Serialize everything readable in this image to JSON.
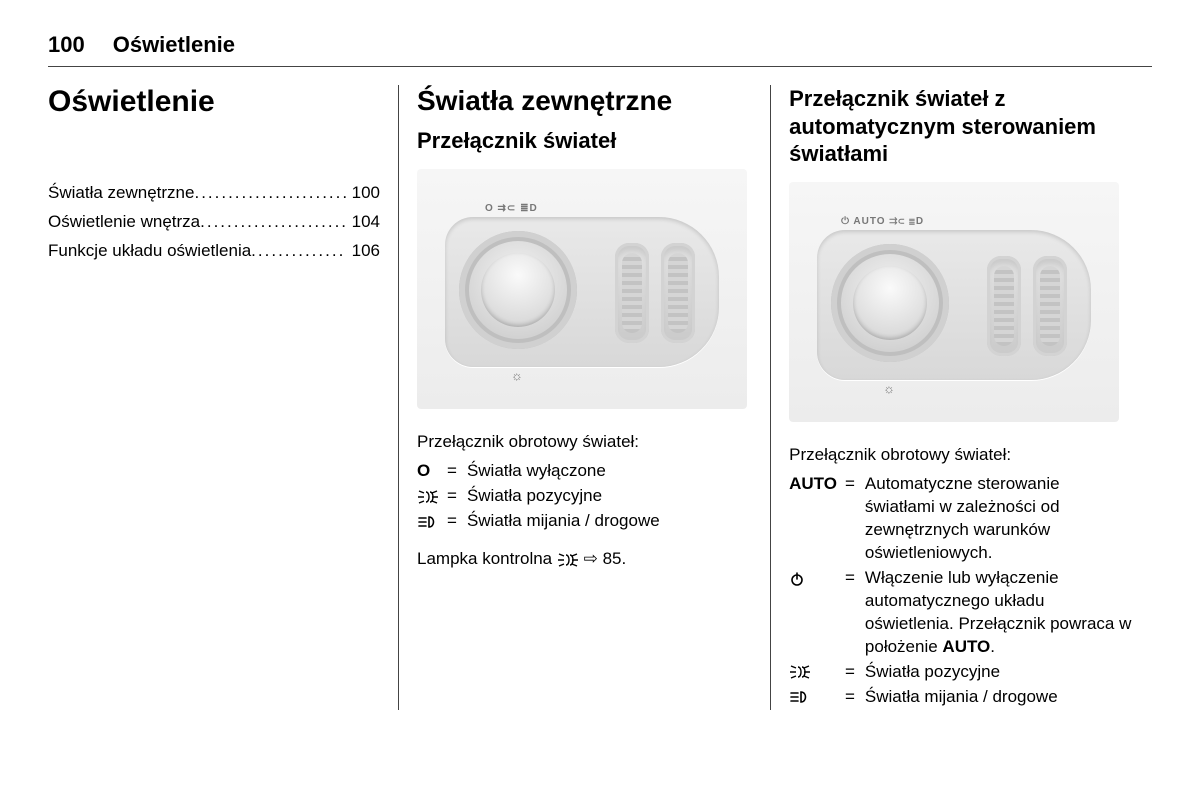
{
  "header": {
    "page_number": "100",
    "chapter": "Oświetlenie"
  },
  "col1": {
    "title": "Oświetlenie",
    "toc": [
      {
        "label": "Światła zewnętrzne",
        "page": "100"
      },
      {
        "label": "Oświetlenie wnętrza",
        "page": "104"
      },
      {
        "label": "Funkcje układu oświetlenia",
        "page": "106"
      }
    ]
  },
  "col2": {
    "section": "Światła zewnętrzne",
    "subsection": "Przełącznik świateł",
    "dial_top_label": "O ⇉⊂ ≣D",
    "dial_bottom_label": "☼",
    "lead": "Przełącznik obrotowy świateł:",
    "rows": [
      {
        "sym_text": "O",
        "sym_kind": "text",
        "desc": "Światła wyłączone"
      },
      {
        "sym_kind": "sidelights",
        "desc": "Światła pozycyjne"
      },
      {
        "sym_kind": "headlights",
        "desc": "Światła mijania / drogowe"
      }
    ],
    "note_pre": "Lampka kontrolna ",
    "note_post": " ⇨ 85."
  },
  "col3": {
    "subsection": "Przełącznik świateł z automatycznym sterowaniem światłami",
    "dial_top_label": "⏻ AUTO ⇉⊂ ≣D",
    "dial_bottom_label": "☼",
    "lead": "Przełącznik obrotowy świateł:",
    "rows": [
      {
        "sym_text": "AUTO",
        "sym_kind": "text",
        "desc": "Automatyczne sterowanie światłami w zależności od zewnętrznych warunków oświetleniowych."
      },
      {
        "sym_kind": "power",
        "desc_html": "Włączenie lub wyłączenie automatycznego układu oświetlenia. Przełącznik powraca w położenie <b>AUTO</b>."
      },
      {
        "sym_kind": "sidelights",
        "desc": "Światła pozycyjne"
      },
      {
        "sym_kind": "headlights",
        "desc": "Światła mijania / drogowe"
      }
    ]
  }
}
